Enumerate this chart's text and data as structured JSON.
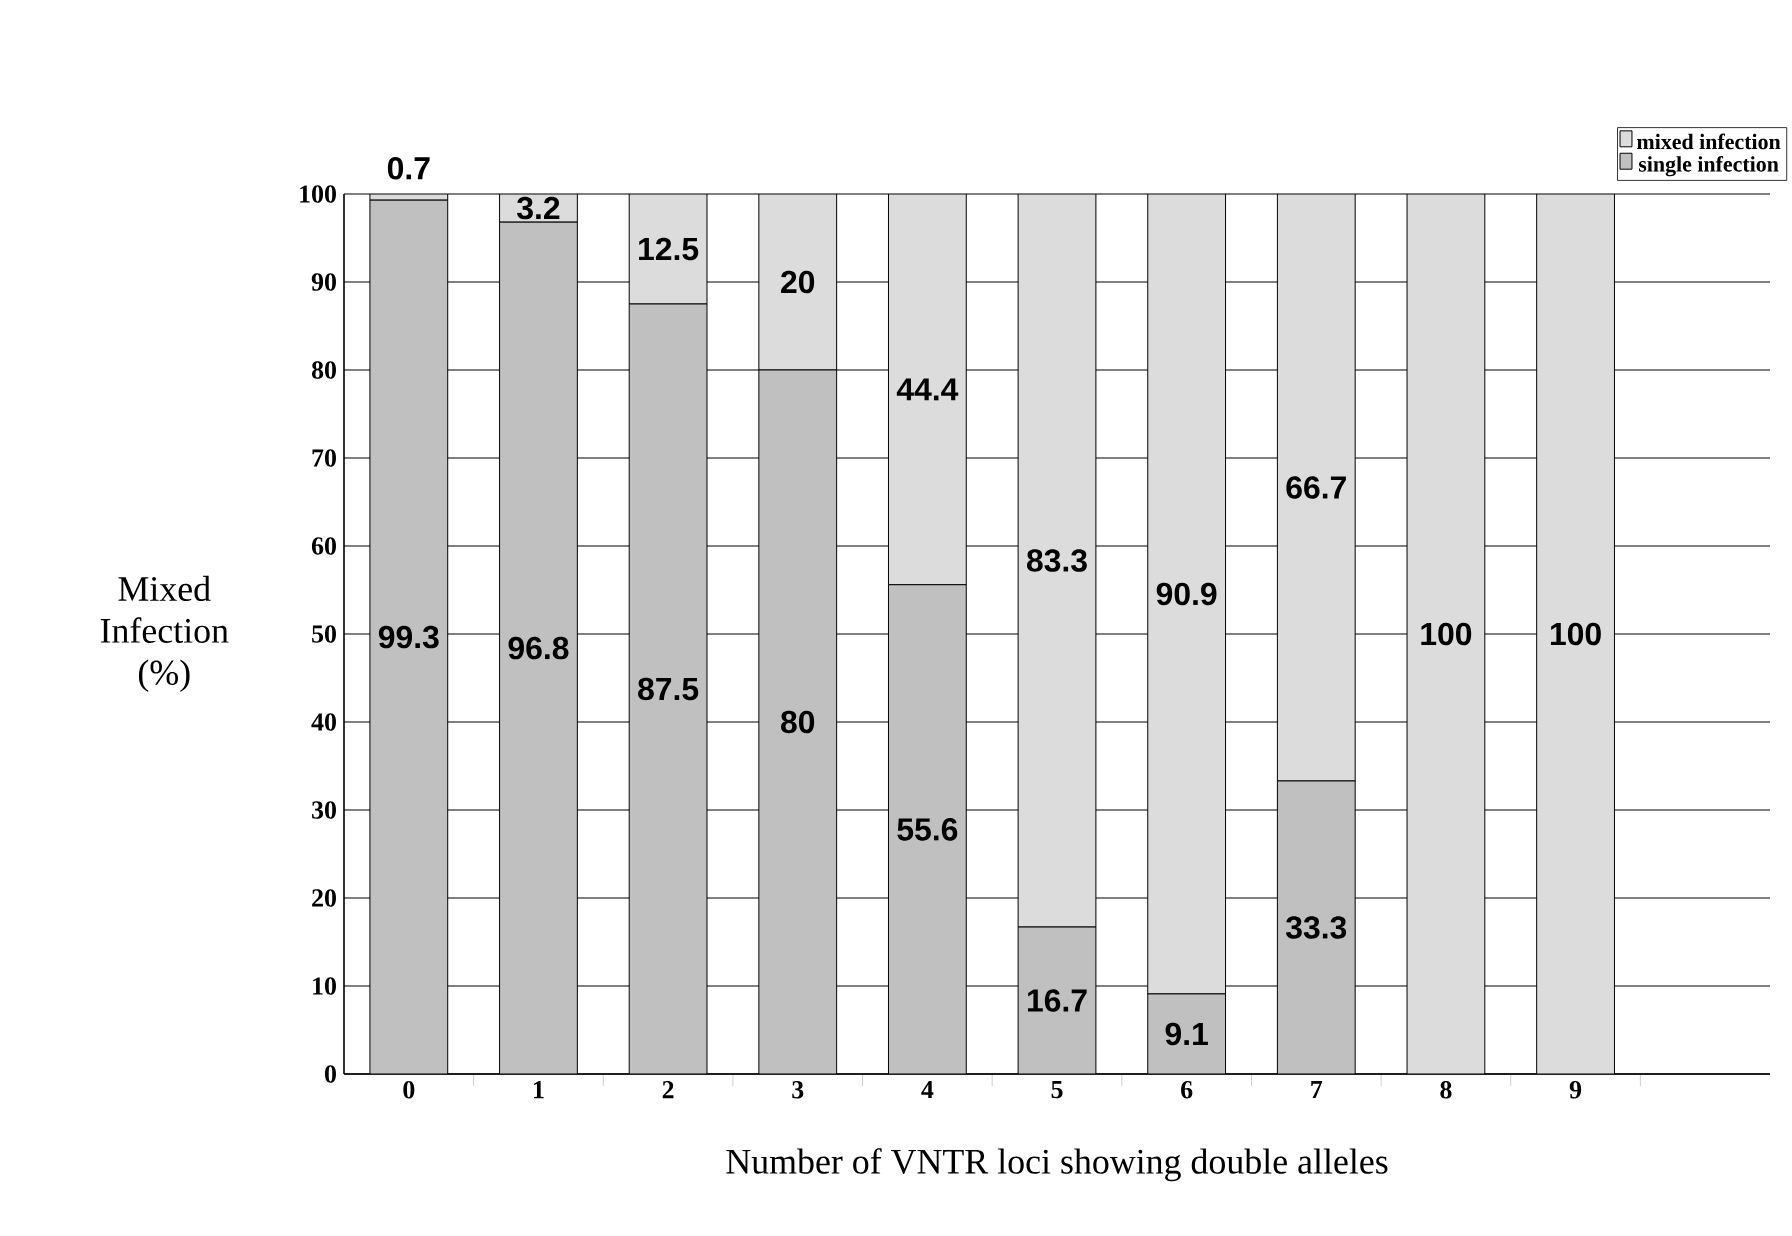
{
  "chart_data": {
    "type": "bar",
    "stacked": true,
    "xlabel": "Number of VNTR loci showing double alleles",
    "ylabel": "Mixed Infection (%)",
    "categories": [
      "0",
      "1",
      "2",
      "3",
      "4",
      "5",
      "6",
      "7",
      "8",
      "9",
      null
    ],
    "series": [
      {
        "name": "single infection",
        "color": "#c0c0c0",
        "values": [
          99.3,
          96.8,
          87.5,
          80,
          55.6,
          16.7,
          9.1,
          33.3,
          0,
          0,
          null
        ],
        "value_labels": [
          "99.3",
          "96.8",
          "87.5",
          "80",
          "55.6",
          "16.7",
          "9.1",
          "33.3",
          null,
          null,
          null
        ]
      },
      {
        "name": "mixed infection",
        "color": "#dcdcdc",
        "values": [
          0.7,
          3.2,
          12.5,
          20,
          44.4,
          83.3,
          90.9,
          66.7,
          100,
          100,
          null
        ],
        "value_labels": [
          "0.7",
          "3.2",
          "12.5",
          "20",
          "44.4",
          "83.3",
          "90.9",
          "66.7",
          "100",
          "100",
          null
        ]
      }
    ],
    "ylim": [
      0,
      100
    ],
    "yticks": [
      0,
      10,
      20,
      30,
      40,
      50,
      60,
      70,
      80,
      90,
      100
    ],
    "grid": "y",
    "legend": "top right"
  }
}
